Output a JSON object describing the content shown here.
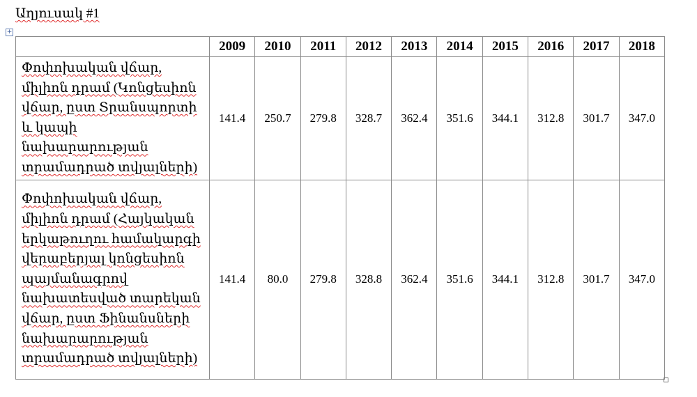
{
  "title": "Աղյուսակ #1",
  "table": {
    "header": [
      "",
      "2009",
      "2010",
      "2011",
      "2012",
      "2013",
      "2014",
      "2015",
      "2016",
      "2017",
      "2018"
    ],
    "rows": [
      [
        "Փոփոխական վճար, միլիոն դրամ (Կոնցեսիոն վճար, ըստ Տրանսպորտի և կապի նախարարության տրամադրած տվյալների)",
        "141.4",
        "250.7",
        "279.8",
        "328.7",
        "362.4",
        "351.6",
        "344.1",
        "312.8",
        "301.7",
        "347.0"
      ],
      [
        "Փոփոխական վճար, միլիոն դրամ (Հայկական երկաթուղու համակարգի վերաբերյալ կոնցեսիոն պայմանագրով նախատեսված տարեկան վճար, ըստ Ֆինանսների նախարարության տրամադրած տվյալների)",
        "141.4",
        "80.0",
        "279.8",
        "328.8",
        "362.4",
        "351.6",
        "344.1",
        "312.8",
        "301.7",
        "347.0"
      ]
    ]
  }
}
